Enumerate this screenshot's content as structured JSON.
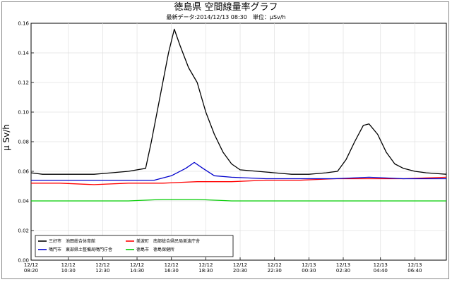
{
  "chart_data": {
    "type": "line",
    "title": "徳島県 空間線量率グラフ",
    "subtitle": "最新データ:2014/12/13 08:30　単位：μSv/h",
    "ylabel": "μ Sv/h",
    "xlabel": "",
    "ylim": [
      0,
      0.16
    ],
    "yticks": [
      0.0,
      0.02,
      0.04,
      0.06,
      0.08,
      0.1,
      0.12,
      0.14,
      0.16
    ],
    "ytick_labels": [
      "0.00",
      "0.02",
      "0.04",
      "0.06",
      "0.08",
      "0.10",
      "0.12",
      "0.14",
      "0.16"
    ],
    "x_start": "2014-12-12 08:20",
    "x_end": "2014-12-13 08:30",
    "xticks": [
      {
        "time": "2014-12-12 08:20",
        "label": [
          "12/12",
          "08:20"
        ]
      },
      {
        "time": "2014-12-12 10:30",
        "label": [
          "12/12",
          "10:30"
        ]
      },
      {
        "time": "2014-12-12 12:30",
        "label": [
          "12/12",
          "12:30"
        ]
      },
      {
        "time": "2014-12-12 14:30",
        "label": [
          "12/12",
          "14:30"
        ]
      },
      {
        "time": "2014-12-12 16:30",
        "label": [
          "12/12",
          "16:30"
        ]
      },
      {
        "time": "2014-12-12 18:30",
        "label": [
          "12/12",
          "18:30"
        ]
      },
      {
        "time": "2014-12-12 20:30",
        "label": [
          "12/12",
          "20:30"
        ]
      },
      {
        "time": "2014-12-12 22:30",
        "label": [
          "12/12",
          "22:30"
        ]
      },
      {
        "time": "2014-12-13 00:30",
        "label": [
          "12/13",
          "00:30"
        ]
      },
      {
        "time": "2014-12-13 02:30",
        "label": [
          "12/13",
          "02:30"
        ]
      },
      {
        "time": "2014-12-13 04:40",
        "label": [
          "12/13",
          "04:40"
        ]
      },
      {
        "time": "2014-12-13 06:40",
        "label": [
          "12/13",
          "06:40"
        ]
      }
    ],
    "grid": true,
    "legend_position": "bottom-left",
    "series": [
      {
        "name": "三好市　池田総合体育館",
        "color": "#000000",
        "points": [
          [
            "2014-12-12 08:20",
            0.059
          ],
          [
            "2014-12-12 09:00",
            0.058
          ],
          [
            "2014-12-12 10:00",
            0.058
          ],
          [
            "2014-12-12 11:00",
            0.058
          ],
          [
            "2014-12-12 12:00",
            0.058
          ],
          [
            "2014-12-12 13:00",
            0.059
          ],
          [
            "2014-12-12 14:00",
            0.06
          ],
          [
            "2014-12-12 15:00",
            0.062
          ],
          [
            "2014-12-12 15:20",
            0.08
          ],
          [
            "2014-12-12 15:40",
            0.1
          ],
          [
            "2014-12-12 16:00",
            0.12
          ],
          [
            "2014-12-12 16:20",
            0.14
          ],
          [
            "2014-12-12 16:40",
            0.156
          ],
          [
            "2014-12-12 17:00",
            0.145
          ],
          [
            "2014-12-12 17:30",
            0.13
          ],
          [
            "2014-12-12 18:00",
            0.12
          ],
          [
            "2014-12-12 18:30",
            0.1
          ],
          [
            "2014-12-12 19:00",
            0.085
          ],
          [
            "2014-12-12 19:30",
            0.073
          ],
          [
            "2014-12-12 20:00",
            0.065
          ],
          [
            "2014-12-12 20:30",
            0.061
          ],
          [
            "2014-12-12 21:30",
            0.06
          ],
          [
            "2014-12-12 22:30",
            0.059
          ],
          [
            "2014-12-12 23:30",
            0.058
          ],
          [
            "2014-12-13 00:30",
            0.058
          ],
          [
            "2014-12-13 01:30",
            0.059
          ],
          [
            "2014-12-13 02:10",
            0.06
          ],
          [
            "2014-12-13 02:40",
            0.068
          ],
          [
            "2014-12-13 03:10",
            0.08
          ],
          [
            "2014-12-13 03:40",
            0.091
          ],
          [
            "2014-12-13 04:00",
            0.092
          ],
          [
            "2014-12-13 04:30",
            0.085
          ],
          [
            "2014-12-13 05:00",
            0.073
          ],
          [
            "2014-12-13 05:30",
            0.065
          ],
          [
            "2014-12-13 06:00",
            0.062
          ],
          [
            "2014-12-13 06:40",
            0.06
          ],
          [
            "2014-12-13 07:20",
            0.059
          ],
          [
            "2014-12-13 08:30",
            0.058
          ]
        ]
      },
      {
        "name": "美波町　南部総合県民局美波庁舎",
        "color": "#ff0000",
        "points": [
          [
            "2014-12-12 08:20",
            0.052
          ],
          [
            "2014-12-12 10:00",
            0.052
          ],
          [
            "2014-12-12 12:00",
            0.051
          ],
          [
            "2014-12-12 14:00",
            0.052
          ],
          [
            "2014-12-12 16:00",
            0.052
          ],
          [
            "2014-12-12 18:00",
            0.053
          ],
          [
            "2014-12-12 20:00",
            0.053
          ],
          [
            "2014-12-12 22:00",
            0.054
          ],
          [
            "2014-12-13 00:00",
            0.054
          ],
          [
            "2014-12-13 02:00",
            0.055
          ],
          [
            "2014-12-13 04:00",
            0.055
          ],
          [
            "2014-12-13 06:00",
            0.055
          ],
          [
            "2014-12-13 08:30",
            0.056
          ]
        ]
      },
      {
        "name": "鳴門市　東部県土整備局鳴門庁舎",
        "color": "#0000cc",
        "points": [
          [
            "2014-12-12 08:20",
            0.054
          ],
          [
            "2014-12-12 10:00",
            0.054
          ],
          [
            "2014-12-12 12:00",
            0.054
          ],
          [
            "2014-12-12 14:00",
            0.054
          ],
          [
            "2014-12-12 15:30",
            0.054
          ],
          [
            "2014-12-12 16:30",
            0.057
          ],
          [
            "2014-12-12 17:20",
            0.062
          ],
          [
            "2014-12-12 17:50",
            0.066
          ],
          [
            "2014-12-12 18:20",
            0.062
          ],
          [
            "2014-12-12 19:00",
            0.057
          ],
          [
            "2014-12-12 20:00",
            0.056
          ],
          [
            "2014-12-12 22:00",
            0.055
          ],
          [
            "2014-12-13 00:00",
            0.055
          ],
          [
            "2014-12-13 02:00",
            0.055
          ],
          [
            "2014-12-13 04:00",
            0.056
          ],
          [
            "2014-12-13 06:00",
            0.055
          ],
          [
            "2014-12-13 08:30",
            0.055
          ]
        ]
      },
      {
        "name": "徳島市　徳島保健所",
        "color": "#00cc00",
        "points": [
          [
            "2014-12-12 08:20",
            0.04
          ],
          [
            "2014-12-12 10:00",
            0.04
          ],
          [
            "2014-12-12 12:00",
            0.04
          ],
          [
            "2014-12-12 14:00",
            0.04
          ],
          [
            "2014-12-12 16:00",
            0.041
          ],
          [
            "2014-12-12 18:00",
            0.041
          ],
          [
            "2014-12-12 20:00",
            0.04
          ],
          [
            "2014-12-12 22:00",
            0.04
          ],
          [
            "2014-12-13 00:00",
            0.04
          ],
          [
            "2014-12-13 02:00",
            0.04
          ],
          [
            "2014-12-13 04:00",
            0.04
          ],
          [
            "2014-12-13 06:00",
            0.04
          ],
          [
            "2014-12-13 08:30",
            0.04
          ]
        ]
      }
    ]
  }
}
